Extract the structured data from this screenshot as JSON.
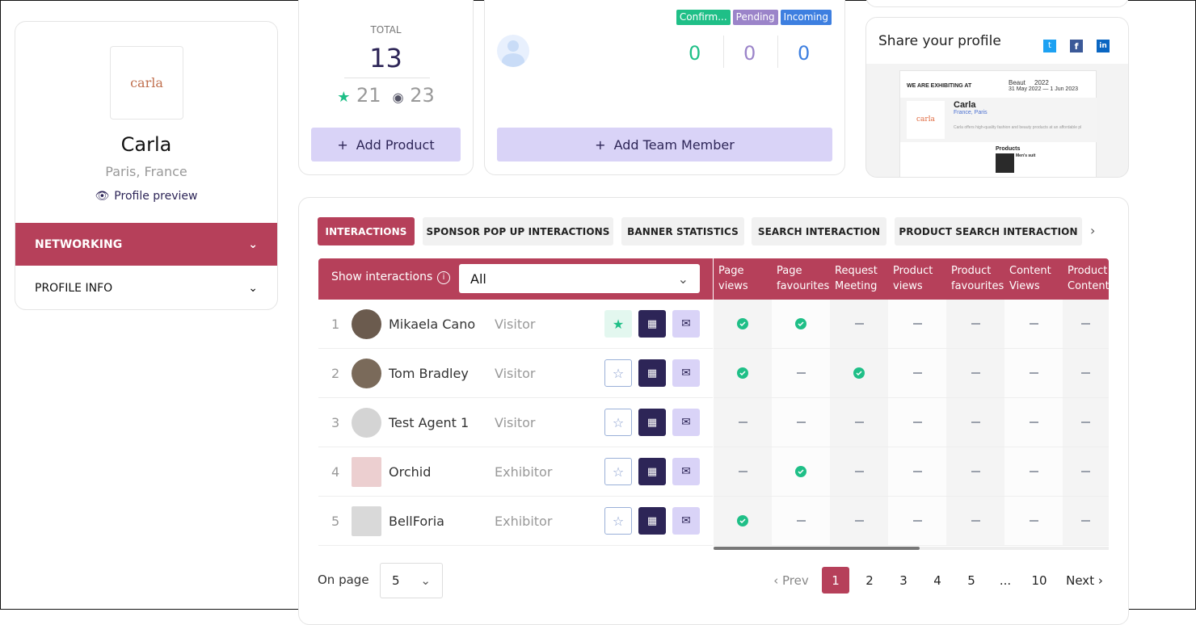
{
  "profile": {
    "name": "Carla",
    "location": "Paris, France",
    "logo_text": "carla",
    "preview_label": "Profile preview",
    "menu": [
      {
        "label": "NETWORKING",
        "active": true
      },
      {
        "label": "PROFILE INFO",
        "active": false
      }
    ]
  },
  "products": {
    "total_label": "TOTAL",
    "total": "13",
    "favourites": "21",
    "views": "23",
    "add_label": "Add Product"
  },
  "team": {
    "badges": [
      {
        "label": "Confirm...",
        "color": "#1fbf87"
      },
      {
        "label": "Pending",
        "color": "#9b84c9"
      },
      {
        "label": "Incoming",
        "color": "#3d7fe0"
      }
    ],
    "counts": [
      "0",
      "0",
      "0"
    ],
    "add_label": "Add Team Member"
  },
  "share": {
    "title": "Share your profile",
    "social": [
      "twitter-icon",
      "facebook-icon",
      "linkedin-icon"
    ],
    "preview": {
      "exhibiting": "WE ARE EXHIBITING AT",
      "event": "Beaut     2022",
      "dates": "31 May 2022 — 1 Jun 2023",
      "name": "Carla",
      "location": "France, Paris",
      "desc": "Carla offers high-quality fashion and beauty products at an affordable pl",
      "products_label": "Products",
      "product": "Men's suit"
    }
  },
  "tabs": [
    "INTERACTIONS",
    "SPONSOR POP UP INTERACTIONS",
    "BANNER STATISTICS",
    "SEARCH INTERACTION",
    "PRODUCT SEARCH INTERACTION"
  ],
  "filter": {
    "label": "Show interactions",
    "value": "All"
  },
  "columns": [
    [
      "Page",
      "views"
    ],
    [
      "Page",
      "favourites"
    ],
    [
      "Request",
      "Meeting"
    ],
    [
      "Product",
      "views"
    ],
    [
      "Product",
      "favourites"
    ],
    [
      "Content",
      "Views"
    ],
    [
      "Product",
      "Content..."
    ]
  ],
  "rows": [
    {
      "n": "1",
      "name": "Mikaela Cano",
      "role": "Visitor",
      "fav": true,
      "cells": [
        1,
        1,
        0,
        0,
        0,
        0,
        0
      ]
    },
    {
      "n": "2",
      "name": "Tom Bradley",
      "role": "Visitor",
      "fav": false,
      "cells": [
        1,
        0,
        1,
        0,
        0,
        0,
        0
      ]
    },
    {
      "n": "3",
      "name": "Test Agent 1",
      "role": "Visitor",
      "fav": false,
      "cells": [
        0,
        0,
        0,
        0,
        0,
        0,
        0
      ]
    },
    {
      "n": "4",
      "name": "Orchid",
      "role": "Exhibitor",
      "fav": false,
      "cells": [
        0,
        1,
        0,
        0,
        0,
        0,
        0
      ]
    },
    {
      "n": "5",
      "name": "BellForia",
      "role": "Exhibitor",
      "fav": false,
      "cells": [
        1,
        0,
        0,
        0,
        0,
        0,
        0
      ]
    }
  ],
  "pagination": {
    "on_page_label": "On page",
    "per_page": "5",
    "prev": "Prev",
    "next": "Next",
    "pages": [
      "1",
      "2",
      "3",
      "4",
      "5",
      "...",
      "10"
    ],
    "current": "1"
  },
  "colors": {
    "accent": "#b6405a",
    "navy": "#2d2557",
    "lavender": "#d9d3f7",
    "green": "#1fbf87"
  }
}
